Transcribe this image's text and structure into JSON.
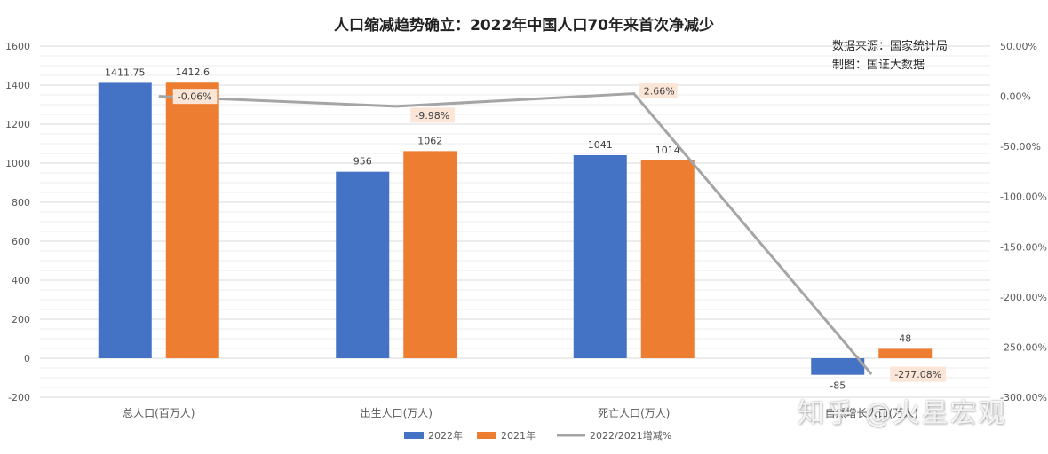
{
  "chart_data": {
    "type": "bar",
    "title": "人口缩减趋势确立：2022年中国人口70年来首次净减少",
    "source_lines": [
      "数据来源：国家统计局",
      "制图：国证大数据"
    ],
    "watermark": "知乎 @火星宏观",
    "categories": [
      "总人口(百万人)",
      "出生人口(万人)",
      "死亡人口(万人)",
      "自然增长人口(万人)"
    ],
    "series": [
      {
        "name": "2022年",
        "kind": "bar",
        "axis": "left",
        "color": "#4472C4",
        "values": [
          1411.75,
          956,
          1041,
          -85
        ],
        "labels": [
          "1411.75",
          "956",
          "1041",
          "-85"
        ]
      },
      {
        "name": "2021年",
        "kind": "bar",
        "axis": "left",
        "color": "#ED7D31",
        "values": [
          1412.6,
          1062,
          1014,
          48
        ],
        "labels": [
          "1412.6",
          "1062",
          "1014",
          "48"
        ]
      },
      {
        "name": "2022/2021增减%",
        "kind": "line",
        "axis": "right",
        "color": "#A5A5A5",
        "values": [
          -0.06,
          -9.98,
          2.66,
          -277.08
        ],
        "labels": [
          "-0.06%",
          "-9.98%",
          "2.66%",
          "-277.08%"
        ]
      }
    ],
    "y_left": {
      "min": -200,
      "max": 1600,
      "ticks": [
        "-200",
        "0",
        "200",
        "400",
        "600",
        "800",
        "1000",
        "1200",
        "1400",
        "1600"
      ]
    },
    "y_right": {
      "min": -300,
      "max": 50,
      "ticks": [
        "-300.00%",
        "-250.00%",
        "-200.00%",
        "-150.00%",
        "-100.00%",
        "-50.00%",
        "0.00%",
        "50.00%"
      ]
    },
    "legend_position": "bottom",
    "grid": true
  }
}
